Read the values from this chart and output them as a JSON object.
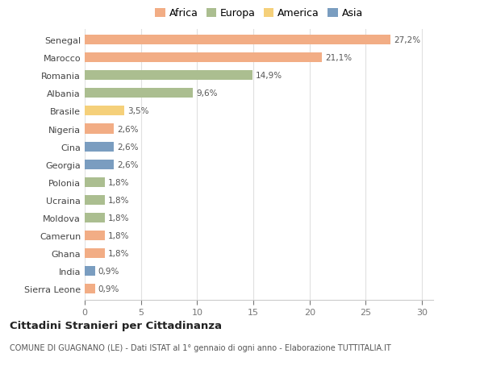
{
  "countries": [
    "Sierra Leone",
    "India",
    "Ghana",
    "Camerun",
    "Moldova",
    "Ucraina",
    "Polonia",
    "Georgia",
    "Cina",
    "Nigeria",
    "Brasile",
    "Albania",
    "Romania",
    "Marocco",
    "Senegal"
  ],
  "values": [
    0.9,
    0.9,
    1.8,
    1.8,
    1.8,
    1.8,
    1.8,
    2.6,
    2.6,
    2.6,
    3.5,
    9.6,
    14.9,
    21.1,
    27.2
  ],
  "labels": [
    "0,9%",
    "0,9%",
    "1,8%",
    "1,8%",
    "1,8%",
    "1,8%",
    "1,8%",
    "2,6%",
    "2,6%",
    "2,6%",
    "3,5%",
    "9,6%",
    "14,9%",
    "21,1%",
    "27,2%"
  ],
  "continents": [
    "Africa",
    "Asia",
    "Africa",
    "Africa",
    "Europa",
    "Europa",
    "Europa",
    "Asia",
    "Asia",
    "Africa",
    "America",
    "Europa",
    "Europa",
    "Africa",
    "Africa"
  ],
  "colors": {
    "Africa": "#F2AD85",
    "Europa": "#ABBE90",
    "America": "#F5D07A",
    "Asia": "#7A9DC0"
  },
  "legend_labels": [
    "Africa",
    "Europa",
    "America",
    "Asia"
  ],
  "legend_colors": [
    "#F2AD85",
    "#ABBE90",
    "#F5D07A",
    "#7A9DC0"
  ],
  "title": "Cittadini Stranieri per Cittadinanza",
  "subtitle": "COMUNE DI GUAGNANO (LE) - Dati ISTAT al 1° gennaio di ogni anno - Elaborazione TUTTITALIA.IT",
  "xlim": [
    0,
    30
  ],
  "xticks": [
    0,
    5,
    10,
    15,
    20,
    25,
    30
  ],
  "background_color": "#ffffff",
  "grid_color": "#e0e0e0",
  "bar_height": 0.55
}
